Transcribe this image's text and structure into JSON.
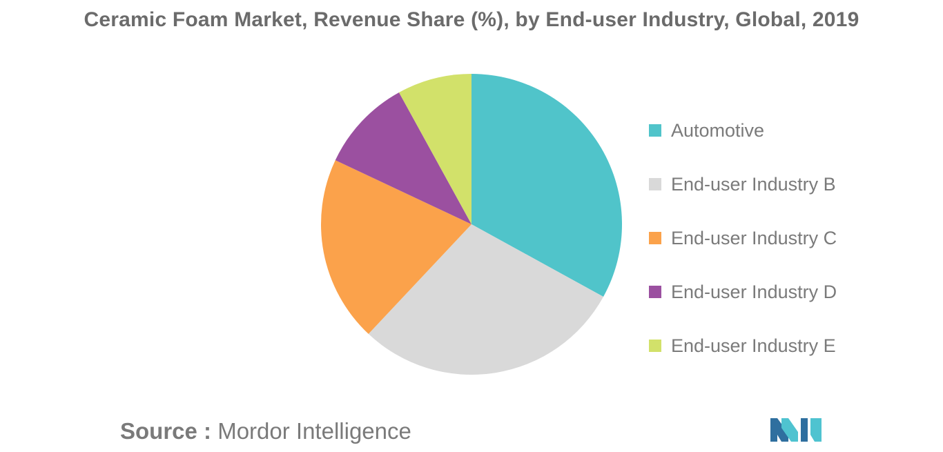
{
  "chart_data": {
    "type": "pie",
    "title": "Ceramic Foam Market, Revenue Share (%), by End-user Industry, Global, 2019",
    "categories": [
      "Automotive",
      "End-user Industry B",
      "End-user Industry C",
      "End-user Industry D",
      "End-user Industry E"
    ],
    "values": [
      33.0,
      29.0,
      20.0,
      10.0,
      8.0
    ],
    "colors": [
      "#50c4ca",
      "#d9d9d9",
      "#fba24b",
      "#9b50a0",
      "#d2e16a"
    ],
    "legend_position": "right"
  },
  "source": {
    "label": "Source :",
    "text": "Mordor Intelligence"
  },
  "logo": {
    "name": "mordor-intelligence-logo",
    "colors": [
      "#2f6f9f",
      "#4fc3d0"
    ]
  }
}
